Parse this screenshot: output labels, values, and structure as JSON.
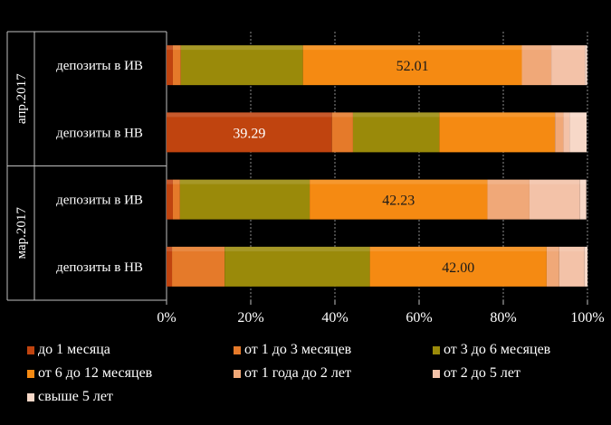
{
  "chart_data": {
    "type": "bar",
    "orientation": "horizontal",
    "stacked": "percent",
    "groups": [
      {
        "label": "апр.2017",
        "rows": [
          "депозиты в ИВ",
          "депозиты в НВ"
        ]
      },
      {
        "label": "мар.2017",
        "rows": [
          "депозиты в ИВ",
          "депозиты в НВ"
        ]
      }
    ],
    "categories": [
      "депозиты в ИВ",
      "депозиты в НВ",
      "депозиты в ИВ",
      "депозиты в НВ"
    ],
    "series": [
      {
        "name": "до 1 месяца",
        "color": "#c0440f",
        "values": [
          1.5,
          39.29,
          1.5,
          1.3
        ]
      },
      {
        "name": "от 1 до 3 месяцев",
        "color": "#e57a2a",
        "values": [
          1.9,
          5.0,
          1.7,
          12.5
        ]
      },
      {
        "name": "от 3 до 6 месяцев",
        "color": "#9a8a0a",
        "values": [
          29.0,
          20.5,
          30.8,
          34.5
        ]
      },
      {
        "name": "от 6 до 12 месяцев",
        "color": "#f58a12",
        "values": [
          52.01,
          27.5,
          42.23,
          42.0
        ]
      },
      {
        "name": "от 1 года до 2 лет",
        "color": "#f0a878",
        "values": [
          7.0,
          2.0,
          10.0,
          3.0
        ]
      },
      {
        "name": "от 2 до 5 лет",
        "color": "#f3c2a8",
        "values": [
          8.0,
          1.5,
          12.0,
          6.0
        ]
      },
      {
        "name": "свыше 5 лет",
        "color": "#f7d8c8",
        "values": [
          0.5,
          4.0,
          1.5,
          0.7
        ]
      }
    ],
    "data_labels": [
      {
        "row": 0,
        "series": 3,
        "text": "52.01"
      },
      {
        "row": 1,
        "series": 0,
        "text": "39.29"
      },
      {
        "row": 2,
        "series": 3,
        "text": "42.23"
      },
      {
        "row": 3,
        "series": 3,
        "text": "42.00"
      }
    ],
    "x_ticks": [
      "0%",
      "20%",
      "40%",
      "60%",
      "80%",
      "100%"
    ],
    "xlim": [
      0,
      100
    ],
    "grid": "vertical dotted",
    "legend_position": "bottom"
  }
}
